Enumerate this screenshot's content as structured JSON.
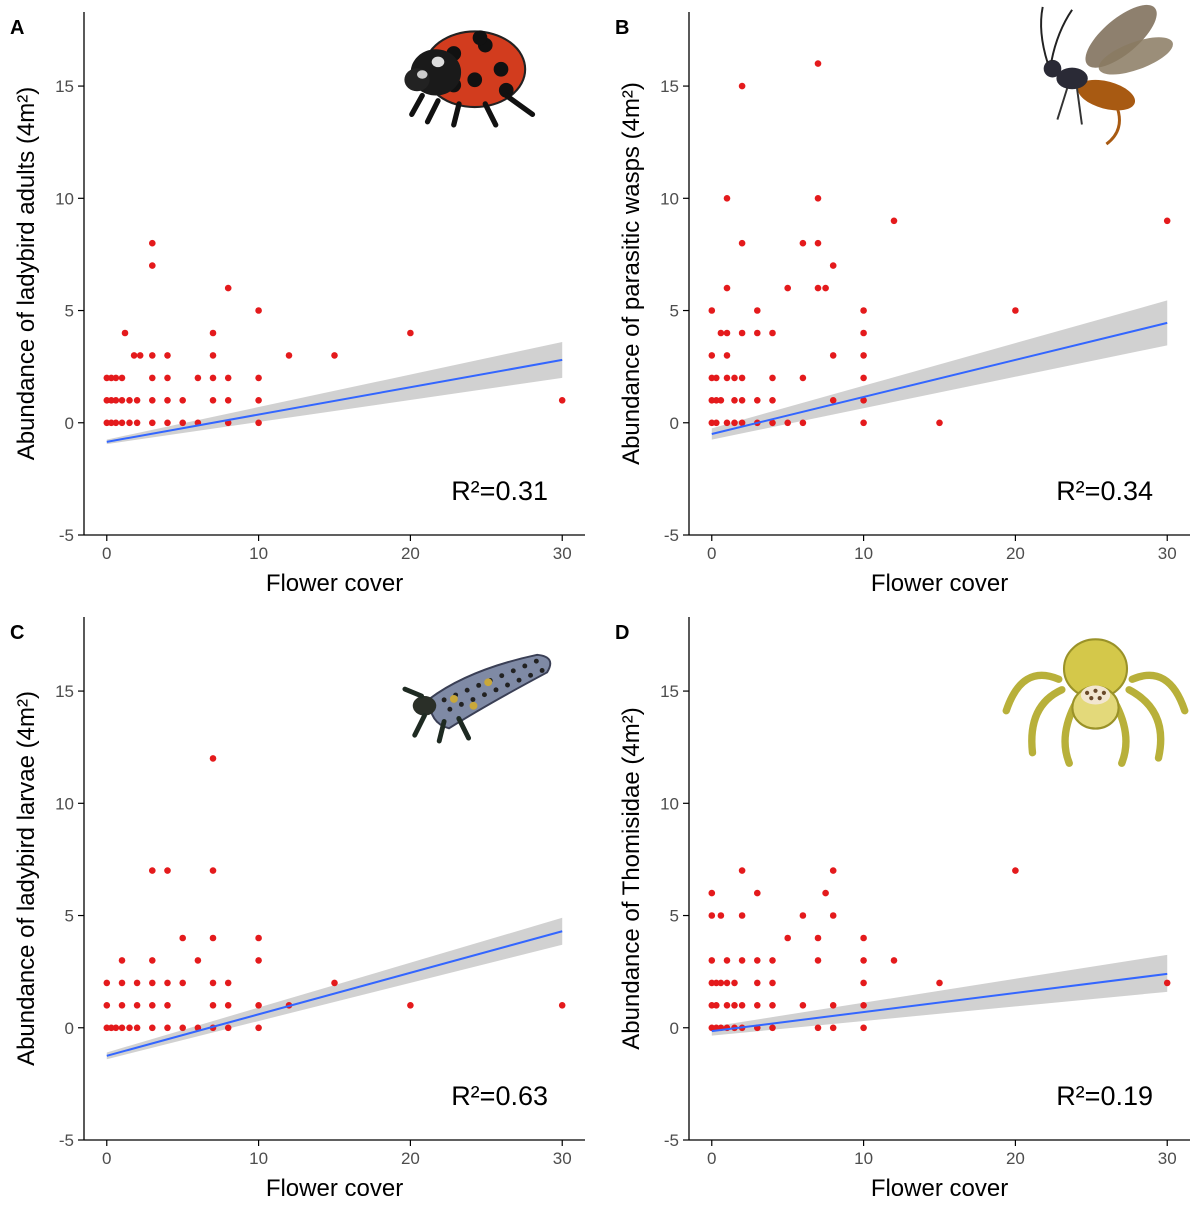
{
  "colors": {
    "points": "#e41a1c",
    "fit_line": "#3366ff",
    "ribbon": "#cccccc",
    "axis": "#000000",
    "tick_text": "#4d4d4d"
  },
  "chart_data": [
    {
      "type": "scatter",
      "panel_label": "A",
      "icon": "ladybird-adult-icon",
      "title": "",
      "xlabel": "Flower cover",
      "ylabel": "Abundance of ladybird adults (4m²)",
      "xlim": [
        -1.5,
        31.5
      ],
      "ylim": [
        -5,
        18.3
      ],
      "x_ticks": [
        0,
        10,
        20,
        30
      ],
      "y_ticks": [
        -5,
        0,
        5,
        10,
        15
      ],
      "grid": false,
      "annotation": "R²=0.31",
      "points": [
        [
          0,
          0
        ],
        [
          0,
          1
        ],
        [
          0,
          2
        ],
        [
          0.3,
          0
        ],
        [
          0.3,
          1
        ],
        [
          0.3,
          2
        ],
        [
          0.6,
          0
        ],
        [
          0.6,
          1
        ],
        [
          0.6,
          2
        ],
        [
          1,
          0
        ],
        [
          1,
          1
        ],
        [
          1,
          2
        ],
        [
          1.2,
          4
        ],
        [
          1.5,
          0
        ],
        [
          1.5,
          1
        ],
        [
          1.8,
          3
        ],
        [
          2,
          0
        ],
        [
          2,
          1
        ],
        [
          2.2,
          3
        ],
        [
          3,
          0
        ],
        [
          3,
          1
        ],
        [
          3,
          2
        ],
        [
          3,
          3
        ],
        [
          3,
          7
        ],
        [
          3,
          8
        ],
        [
          4,
          0
        ],
        [
          4,
          1
        ],
        [
          4,
          2
        ],
        [
          4,
          3
        ],
        [
          5,
          0
        ],
        [
          5,
          1
        ],
        [
          6,
          0
        ],
        [
          6,
          2
        ],
        [
          7,
          1
        ],
        [
          7,
          2
        ],
        [
          7,
          3
        ],
        [
          7,
          4
        ],
        [
          8,
          0
        ],
        [
          8,
          1
        ],
        [
          8,
          2
        ],
        [
          8,
          6
        ],
        [
          10,
          0
        ],
        [
          10,
          1
        ],
        [
          10,
          2
        ],
        [
          10,
          5
        ],
        [
          12,
          3
        ],
        [
          15,
          3
        ],
        [
          20,
          4
        ],
        [
          30,
          1
        ]
      ],
      "fit": {
        "x": [
          0,
          30
        ],
        "y": [
          -0.85,
          2.8
        ],
        "ci_low_start": -0.95,
        "ci_high_start": -0.75,
        "ci_low_end": 2.0,
        "ci_high_end": 3.6
      }
    },
    {
      "type": "scatter",
      "panel_label": "B",
      "icon": "parasitic-wasp-icon",
      "title": "",
      "xlabel": "Flower cover",
      "ylabel": "Abundance of parasitic wasps (4m²)",
      "xlim": [
        -1.5,
        31.5
      ],
      "ylim": [
        -5,
        18.3
      ],
      "x_ticks": [
        0,
        10,
        20,
        30
      ],
      "y_ticks": [
        -5,
        0,
        5,
        10,
        15
      ],
      "grid": false,
      "annotation": "R²=0.34",
      "points": [
        [
          0,
          0
        ],
        [
          0,
          1
        ],
        [
          0,
          2
        ],
        [
          0,
          3
        ],
        [
          0,
          5
        ],
        [
          0.3,
          0
        ],
        [
          0.3,
          1
        ],
        [
          0.3,
          2
        ],
        [
          0.6,
          1
        ],
        [
          0.6,
          4
        ],
        [
          1,
          0
        ],
        [
          1,
          2
        ],
        [
          1,
          3
        ],
        [
          1,
          4
        ],
        [
          1,
          6
        ],
        [
          1,
          10
        ],
        [
          1.5,
          0
        ],
        [
          1.5,
          1
        ],
        [
          1.5,
          2
        ],
        [
          2,
          0
        ],
        [
          2,
          1
        ],
        [
          2,
          2
        ],
        [
          2,
          4
        ],
        [
          2,
          8
        ],
        [
          2,
          15
        ],
        [
          3,
          0
        ],
        [
          3,
          1
        ],
        [
          3,
          4
        ],
        [
          3,
          5
        ],
        [
          4,
          0
        ],
        [
          4,
          1
        ],
        [
          4,
          2
        ],
        [
          4,
          4
        ],
        [
          5,
          0
        ],
        [
          5,
          6
        ],
        [
          6,
          0
        ],
        [
          6,
          2
        ],
        [
          6,
          8
        ],
        [
          7,
          6
        ],
        [
          7,
          8
        ],
        [
          7,
          10
        ],
        [
          7,
          16
        ],
        [
          7.5,
          6
        ],
        [
          8,
          1
        ],
        [
          8,
          3
        ],
        [
          8,
          7
        ],
        [
          10,
          0
        ],
        [
          10,
          1
        ],
        [
          10,
          2
        ],
        [
          10,
          3
        ],
        [
          10,
          4
        ],
        [
          10,
          5
        ],
        [
          12,
          9
        ],
        [
          15,
          0
        ],
        [
          20,
          5
        ],
        [
          30,
          9
        ]
      ],
      "fit": {
        "x": [
          0,
          30
        ],
        "y": [
          -0.5,
          4.45
        ],
        "ci_low_start": -0.75,
        "ci_high_start": -0.25,
        "ci_low_end": 3.45,
        "ci_high_end": 5.45
      }
    },
    {
      "type": "scatter",
      "panel_label": "C",
      "icon": "ladybird-larva-icon",
      "title": "",
      "xlabel": "Flower cover",
      "ylabel": "Abundance of ladybird larvae (4m²)",
      "xlim": [
        -1.5,
        31.5
      ],
      "ylim": [
        -5,
        18.3
      ],
      "x_ticks": [
        0,
        10,
        20,
        30
      ],
      "y_ticks": [
        -5,
        0,
        5,
        10,
        15
      ],
      "grid": false,
      "annotation": "R²=0.63",
      "points": [
        [
          0,
          0
        ],
        [
          0,
          1
        ],
        [
          0,
          2
        ],
        [
          0.3,
          0
        ],
        [
          0.6,
          0
        ],
        [
          1,
          0
        ],
        [
          1,
          1
        ],
        [
          1,
          2
        ],
        [
          1,
          3
        ],
        [
          1.5,
          0
        ],
        [
          2,
          0
        ],
        [
          2,
          1
        ],
        [
          2,
          2
        ],
        [
          3,
          0
        ],
        [
          3,
          1
        ],
        [
          3,
          2
        ],
        [
          3,
          3
        ],
        [
          3,
          7
        ],
        [
          4,
          0
        ],
        [
          4,
          1
        ],
        [
          4,
          2
        ],
        [
          4,
          7
        ],
        [
          5,
          0
        ],
        [
          5,
          2
        ],
        [
          5,
          4
        ],
        [
          6,
          0
        ],
        [
          6,
          3
        ],
        [
          7,
          0
        ],
        [
          7,
          1
        ],
        [
          7,
          2
        ],
        [
          7,
          4
        ],
        [
          7,
          7
        ],
        [
          7,
          12
        ],
        [
          8,
          0
        ],
        [
          8,
          1
        ],
        [
          8,
          2
        ],
        [
          10,
          0
        ],
        [
          10,
          1
        ],
        [
          10,
          3
        ],
        [
          10,
          4
        ],
        [
          12,
          1
        ],
        [
          15,
          2
        ],
        [
          20,
          1
        ],
        [
          30,
          1
        ]
      ],
      "fit": {
        "x": [
          0,
          30
        ],
        "y": [
          -1.25,
          4.3
        ],
        "ci_low_start": -1.4,
        "ci_high_start": -1.1,
        "ci_low_end": 3.7,
        "ci_high_end": 4.9
      }
    },
    {
      "type": "scatter",
      "panel_label": "D",
      "icon": "crab-spider-icon",
      "title": "",
      "xlabel": "Flower cover",
      "ylabel": "Abundance of Thomisidae (4m²)",
      "xlim": [
        -1.5,
        31.5
      ],
      "ylim": [
        -5,
        18.3
      ],
      "x_ticks": [
        0,
        10,
        20,
        30
      ],
      "y_ticks": [
        -5,
        0,
        5,
        10,
        15
      ],
      "grid": false,
      "annotation": "R²=0.19",
      "points": [
        [
          0,
          0
        ],
        [
          0,
          1
        ],
        [
          0,
          2
        ],
        [
          0,
          3
        ],
        [
          0,
          5
        ],
        [
          0,
          6
        ],
        [
          0.3,
          0
        ],
        [
          0.3,
          1
        ],
        [
          0.3,
          2
        ],
        [
          0.6,
          0
        ],
        [
          0.6,
          2
        ],
        [
          0.6,
          5
        ],
        [
          1,
          0
        ],
        [
          1,
          1
        ],
        [
          1,
          2
        ],
        [
          1,
          3
        ],
        [
          1.5,
          0
        ],
        [
          1.5,
          1
        ],
        [
          1.5,
          2
        ],
        [
          2,
          0
        ],
        [
          2,
          1
        ],
        [
          2,
          3
        ],
        [
          2,
          5
        ],
        [
          2,
          7
        ],
        [
          3,
          0
        ],
        [
          3,
          1
        ],
        [
          3,
          2
        ],
        [
          3,
          3
        ],
        [
          3,
          6
        ],
        [
          4,
          0
        ],
        [
          4,
          1
        ],
        [
          4,
          2
        ],
        [
          4,
          3
        ],
        [
          5,
          4
        ],
        [
          6,
          1
        ],
        [
          6,
          5
        ],
        [
          7,
          0
        ],
        [
          7,
          3
        ],
        [
          7,
          4
        ],
        [
          7.5,
          6
        ],
        [
          8,
          0
        ],
        [
          8,
          1
        ],
        [
          8,
          5
        ],
        [
          8,
          7
        ],
        [
          10,
          0
        ],
        [
          10,
          1
        ],
        [
          10,
          2
        ],
        [
          10,
          3
        ],
        [
          10,
          4
        ],
        [
          12,
          3
        ],
        [
          15,
          2
        ],
        [
          20,
          7
        ],
        [
          30,
          2
        ]
      ],
      "fit": {
        "x": [
          0,
          30
        ],
        "y": [
          -0.15,
          2.4
        ],
        "ci_low_start": -0.35,
        "ci_high_start": 0.05,
        "ci_low_end": 1.6,
        "ci_high_end": 3.25
      }
    }
  ]
}
